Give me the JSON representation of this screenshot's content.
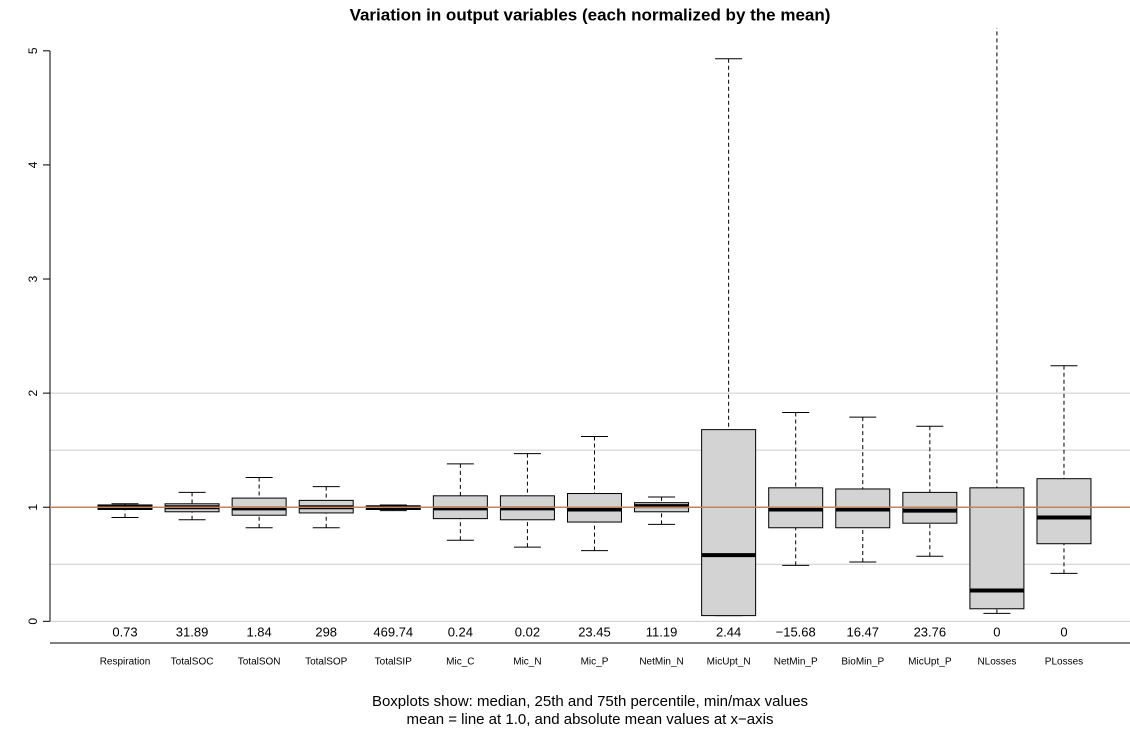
{
  "chart_data": {
    "type": "box",
    "title": "Variation in output variables (each normalized by the mean)",
    "footnote": [
      "Boxplots show: median, 25th and 75th percentile, min/max values",
      "mean = line at 1.0, and absolute mean values at x−axis"
    ],
    "categories": [
      "Respiration",
      "TotalSOC",
      "TotalSON",
      "TotalSOP",
      "TotalSIP",
      "Mic_C",
      "Mic_N",
      "Mic_P",
      "NetMin_N",
      "MicUpt_N",
      "NetMin_P",
      "BioMin_P",
      "MicUpt_P",
      "NLosses",
      "PLosses"
    ],
    "mean_labels": [
      "0.73",
      "31.89",
      "1.84",
      "298",
      "469.74",
      "0.24",
      "0.02",
      "23.45",
      "11.19",
      "2.44",
      "−15.68",
      "16.47",
      "23.76",
      "0",
      "0"
    ],
    "boxes": [
      {
        "min": 0.91,
        "q1": 0.98,
        "median": 1.0,
        "q3": 1.02,
        "max": 1.03
      },
      {
        "min": 0.89,
        "q1": 0.96,
        "median": 1.0,
        "q3": 1.03,
        "max": 1.13
      },
      {
        "min": 0.82,
        "q1": 0.93,
        "median": 0.99,
        "q3": 1.08,
        "max": 1.26
      },
      {
        "min": 0.82,
        "q1": 0.95,
        "median": 1.0,
        "q3": 1.06,
        "max": 1.18
      },
      {
        "min": 0.97,
        "q1": 0.98,
        "median": 1.0,
        "q3": 1.01,
        "max": 1.02
      },
      {
        "min": 0.71,
        "q1": 0.9,
        "median": 0.99,
        "q3": 1.1,
        "max": 1.38
      },
      {
        "min": 0.65,
        "q1": 0.89,
        "median": 0.99,
        "q3": 1.1,
        "max": 1.47
      },
      {
        "min": 0.62,
        "q1": 0.87,
        "median": 0.98,
        "q3": 1.12,
        "max": 1.62
      },
      {
        "min": 0.85,
        "q1": 0.96,
        "median": 1.01,
        "q3": 1.04,
        "max": 1.09
      },
      {
        "min": 0.05,
        "q1": 0.05,
        "median": 0.58,
        "q3": 1.68,
        "max": 4.93
      },
      {
        "min": 0.49,
        "q1": 0.82,
        "median": 0.98,
        "q3": 1.17,
        "max": 1.83
      },
      {
        "min": 0.52,
        "q1": 0.82,
        "median": 0.98,
        "q3": 1.16,
        "max": 1.79
      },
      {
        "min": 0.57,
        "q1": 0.86,
        "median": 0.97,
        "q3": 1.13,
        "max": 1.71
      },
      {
        "min": 0.07,
        "q1": 0.11,
        "median": 0.27,
        "q3": 1.17,
        "max": 5.6
      },
      {
        "min": 0.42,
        "q1": 0.68,
        "median": 0.91,
        "q3": 1.25,
        "max": 2.24
      }
    ],
    "box_color": "#d3d3d3",
    "ylim": [
      -0.19,
      5.2
    ],
    "yticks": [
      0,
      1,
      2,
      3,
      4,
      5
    ],
    "grid_lines": [
      0,
      0.5,
      1,
      1.5,
      2
    ],
    "grid_color": "#cccccc",
    "ref_line": {
      "value": 1,
      "color": "#c8825a"
    }
  }
}
